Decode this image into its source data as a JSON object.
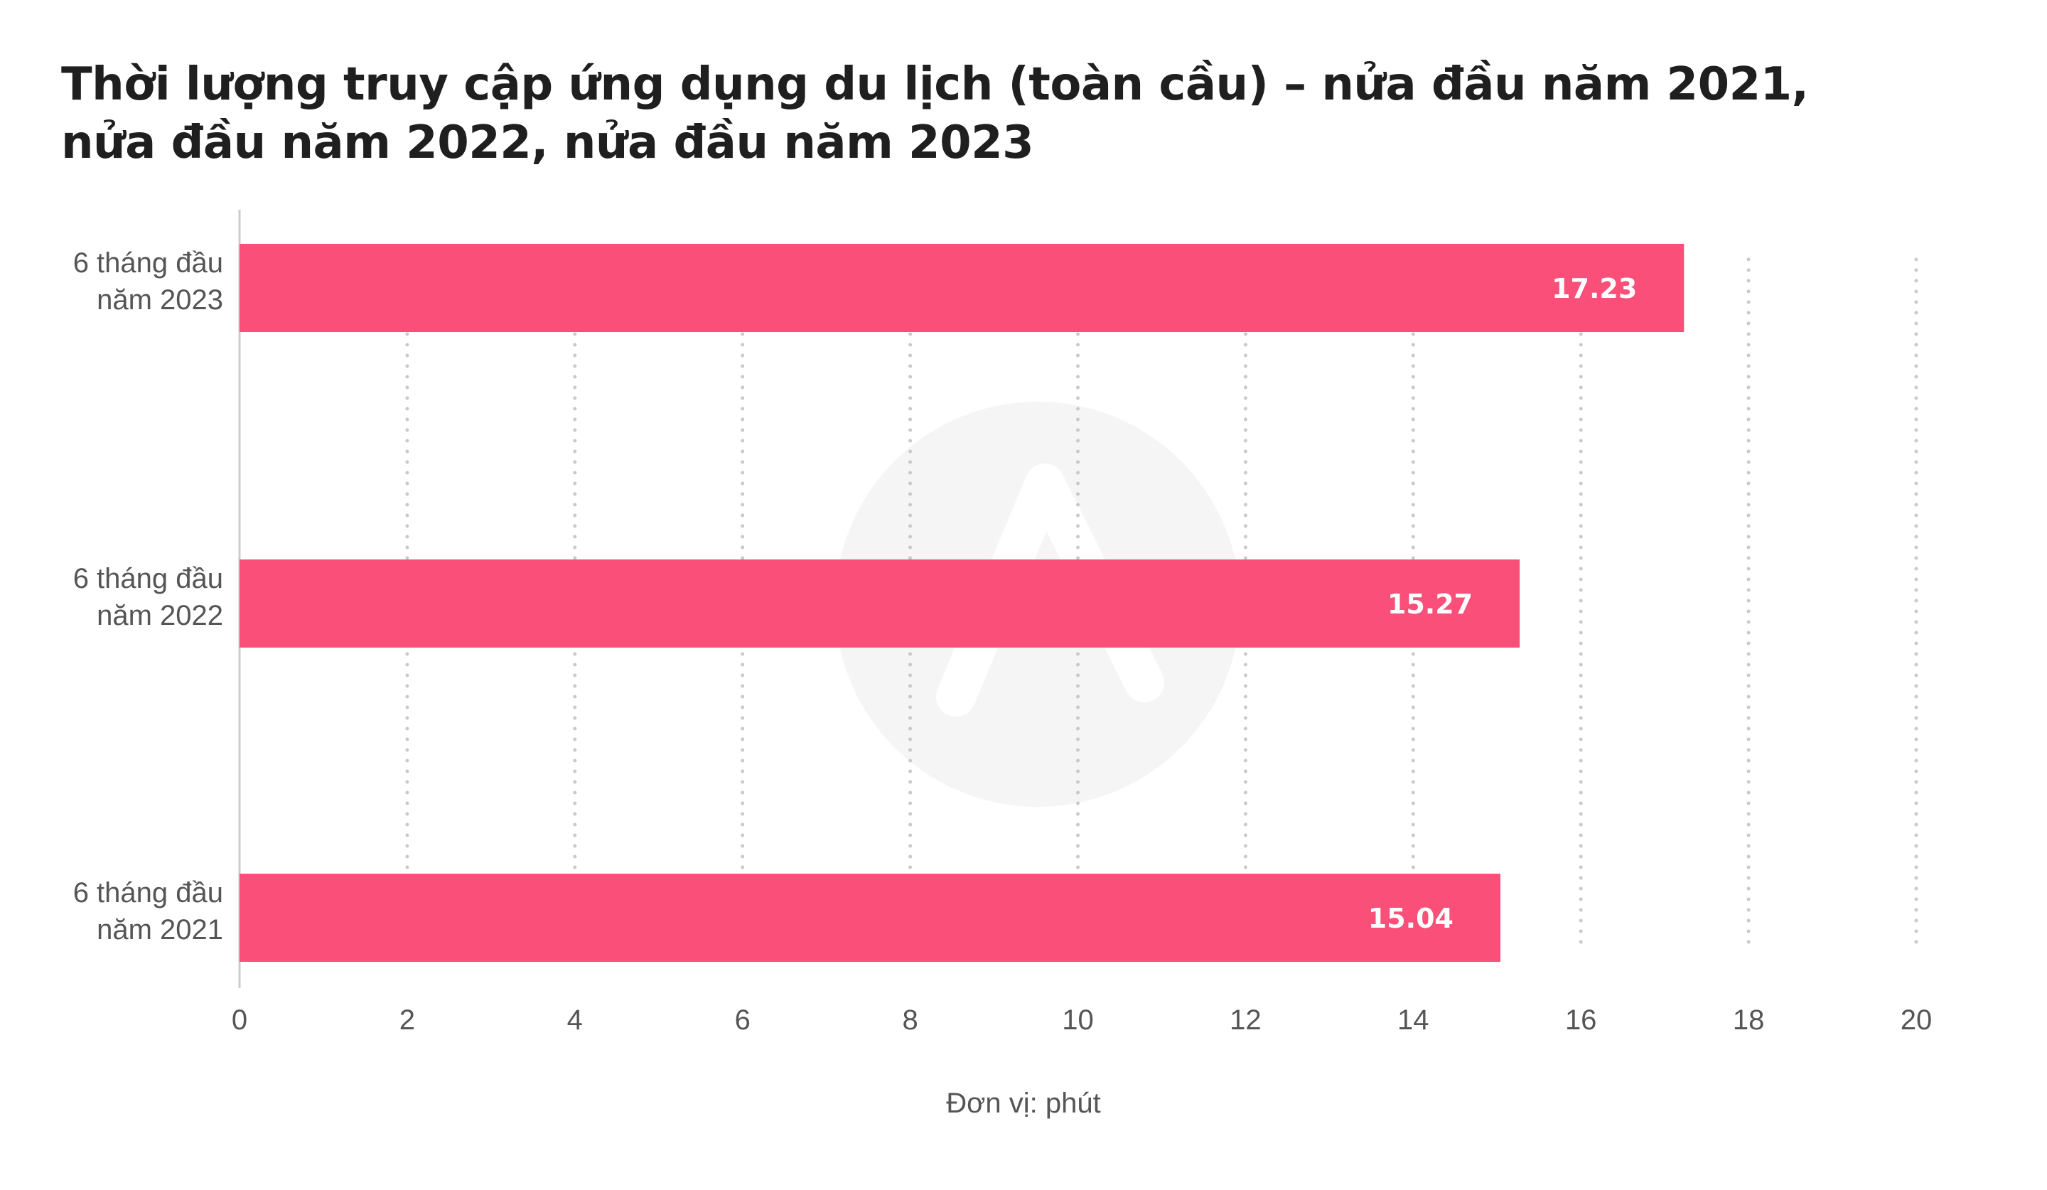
{
  "chart_data": {
    "type": "bar",
    "orientation": "horizontal",
    "title": "Thời lượng truy cập ứng dụng du lịch (toàn cầu) – nửa đầu năm 2021, nửa đầu năm 2022, nửa đầu năm 2023",
    "xlabel": "Đơn vị: phút",
    "ylabel": "",
    "categories": [
      [
        "6 tháng đầu",
        "năm 2023"
      ],
      [
        "6 tháng đầu",
        "năm 2022"
      ],
      [
        "6 tháng đầu",
        "năm 2021"
      ]
    ],
    "values": [
      17.23,
      15.27,
      15.04
    ],
    "value_labels": [
      "17.23",
      "15.27",
      "15.04"
    ],
    "xlim": [
      0,
      20
    ],
    "xticks": [
      0,
      2,
      4,
      6,
      8,
      10,
      12,
      14,
      16,
      18,
      20
    ],
    "grid": "vertical dotted",
    "bar_color": "#F94F79",
    "label_color": "#FFFFFF"
  }
}
